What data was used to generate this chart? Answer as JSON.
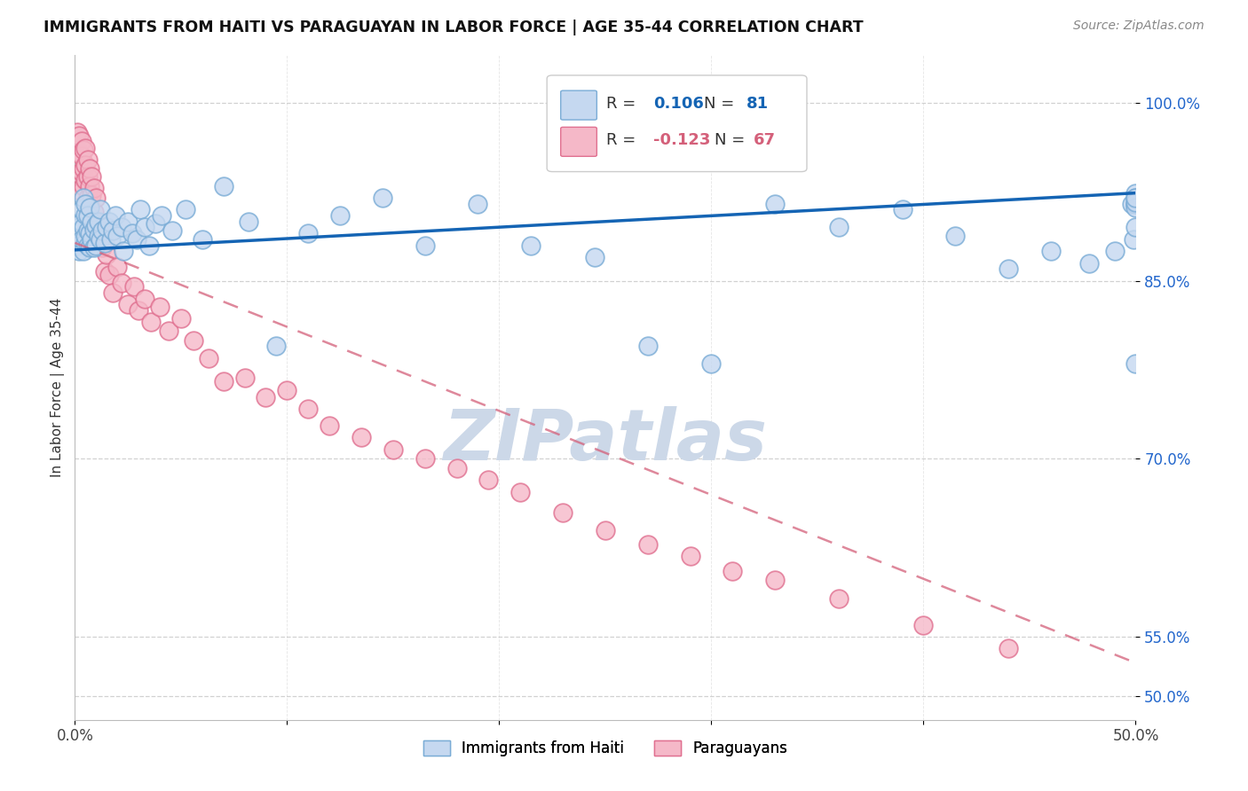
{
  "title": "IMMIGRANTS FROM HAITI VS PARAGUAYAN IN LABOR FORCE | AGE 35-44 CORRELATION CHART",
  "source": "Source: ZipAtlas.com",
  "ylabel": "In Labor Force | Age 35-44",
  "xlim": [
    0.0,
    0.5
  ],
  "ylim": [
    0.48,
    1.04
  ],
  "xticks": [
    0.0,
    0.1,
    0.2,
    0.3,
    0.4,
    0.5
  ],
  "xticklabels": [
    "0.0%",
    "",
    "",
    "",
    "",
    "50.0%"
  ],
  "ytick_positions": [
    0.5,
    0.55,
    0.7,
    0.85,
    1.0
  ],
  "ytick_labels": [
    "50.0%",
    "55.0%",
    "70.0%",
    "85.0%",
    "100.0%"
  ],
  "legend_bottom": [
    "Immigrants from Haiti",
    "Paraguayans"
  ],
  "haiti_line_color": "#1464b4",
  "para_line_color": "#d4607a",
  "haiti_scatter_facecolor": "#c5d8f0",
  "haiti_scatter_edgecolor": "#7aacd6",
  "para_scatter_facecolor": "#f5b8c8",
  "para_scatter_edgecolor": "#e07090",
  "watermark": "ZIPatlas",
  "watermark_color": "#ccd8e8",
  "grid_color": "#cccccc",
  "haiti_line_y0": 0.876,
  "haiti_line_y1": 0.924,
  "para_line_y0": 0.882,
  "para_line_y1": 0.528,
  "haiti_x": [
    0.001,
    0.002,
    0.002,
    0.003,
    0.003,
    0.003,
    0.004,
    0.004,
    0.004,
    0.005,
    0.005,
    0.005,
    0.005,
    0.006,
    0.006,
    0.006,
    0.007,
    0.007,
    0.007,
    0.008,
    0.008,
    0.009,
    0.009,
    0.01,
    0.01,
    0.011,
    0.011,
    0.012,
    0.012,
    0.013,
    0.014,
    0.015,
    0.016,
    0.017,
    0.018,
    0.019,
    0.02,
    0.022,
    0.023,
    0.025,
    0.027,
    0.029,
    0.031,
    0.033,
    0.035,
    0.038,
    0.041,
    0.046,
    0.052,
    0.06,
    0.07,
    0.082,
    0.095,
    0.11,
    0.125,
    0.145,
    0.165,
    0.19,
    0.215,
    0.245,
    0.27,
    0.3,
    0.33,
    0.36,
    0.39,
    0.415,
    0.44,
    0.46,
    0.478,
    0.49,
    0.498,
    0.499,
    0.5,
    0.5,
    0.5,
    0.5,
    0.5,
    0.5,
    0.5,
    0.5,
    0.5
  ],
  "haiti_y": [
    0.88,
    0.875,
    0.895,
    0.885,
    0.9,
    0.91,
    0.875,
    0.895,
    0.92,
    0.882,
    0.888,
    0.906,
    0.915,
    0.88,
    0.892,
    0.905,
    0.878,
    0.89,
    0.912,
    0.885,
    0.9,
    0.878,
    0.893,
    0.88,
    0.897,
    0.888,
    0.9,
    0.885,
    0.91,
    0.892,
    0.882,
    0.895,
    0.9,
    0.885,
    0.892,
    0.905,
    0.888,
    0.895,
    0.875,
    0.9,
    0.89,
    0.885,
    0.91,
    0.895,
    0.88,
    0.898,
    0.905,
    0.892,
    0.91,
    0.885,
    0.93,
    0.9,
    0.795,
    0.89,
    0.905,
    0.92,
    0.88,
    0.915,
    0.88,
    0.87,
    0.795,
    0.78,
    0.915,
    0.895,
    0.91,
    0.888,
    0.86,
    0.875,
    0.865,
    0.875,
    0.915,
    0.885,
    0.78,
    0.895,
    0.915,
    0.924,
    0.915,
    0.92,
    0.912,
    0.916,
    0.92
  ],
  "para_x": [
    0.001,
    0.001,
    0.002,
    0.002,
    0.002,
    0.003,
    0.003,
    0.003,
    0.003,
    0.004,
    0.004,
    0.004,
    0.005,
    0.005,
    0.005,
    0.006,
    0.006,
    0.006,
    0.007,
    0.007,
    0.007,
    0.008,
    0.008,
    0.009,
    0.009,
    0.01,
    0.01,
    0.011,
    0.012,
    0.013,
    0.014,
    0.015,
    0.016,
    0.018,
    0.02,
    0.022,
    0.025,
    0.028,
    0.03,
    0.033,
    0.036,
    0.04,
    0.044,
    0.05,
    0.056,
    0.063,
    0.07,
    0.08,
    0.09,
    0.1,
    0.11,
    0.12,
    0.135,
    0.15,
    0.165,
    0.18,
    0.195,
    0.21,
    0.23,
    0.25,
    0.27,
    0.29,
    0.31,
    0.33,
    0.36,
    0.4,
    0.44
  ],
  "para_y": [
    0.975,
    0.96,
    0.972,
    0.958,
    0.94,
    0.968,
    0.955,
    0.942,
    0.925,
    0.96,
    0.945,
    0.93,
    0.962,
    0.948,
    0.935,
    0.952,
    0.938,
    0.92,
    0.945,
    0.93,
    0.915,
    0.938,
    0.922,
    0.928,
    0.908,
    0.92,
    0.9,
    0.882,
    0.895,
    0.878,
    0.858,
    0.872,
    0.855,
    0.84,
    0.862,
    0.848,
    0.83,
    0.845,
    0.825,
    0.835,
    0.815,
    0.828,
    0.808,
    0.818,
    0.8,
    0.785,
    0.765,
    0.768,
    0.752,
    0.758,
    0.742,
    0.728,
    0.718,
    0.708,
    0.7,
    0.692,
    0.682,
    0.672,
    0.655,
    0.64,
    0.628,
    0.618,
    0.605,
    0.598,
    0.582,
    0.56,
    0.54
  ]
}
